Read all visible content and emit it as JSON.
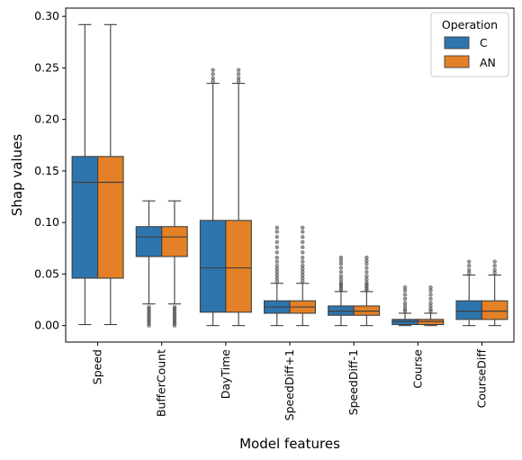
{
  "chart_data": {
    "type": "boxplot",
    "title": "",
    "xlabel": "Model features",
    "ylabel": "Shap values",
    "ylim": [
      -0.016,
      0.308
    ],
    "yticks": [
      0.0,
      0.05,
      0.1,
      0.15,
      0.2,
      0.25,
      0.3
    ],
    "ytick_labels": [
      "0.00",
      "0.05",
      "0.10",
      "0.15",
      "0.20",
      "0.25",
      "0.30"
    ],
    "categories": [
      "Speed",
      "BufferCount",
      "DayTime",
      "SpeedDiff+1",
      "SpeedDiff-1",
      "Course",
      "CourseDiff"
    ],
    "legend": {
      "title": "Operation",
      "position": "top-right"
    },
    "series": [
      {
        "name": "C",
        "color": "#2f75ad",
        "boxes": [
          {
            "whislo": 0.001,
            "q1": 0.046,
            "med": 0.139,
            "q3": 0.164,
            "whishi": 0.292,
            "fliers": []
          },
          {
            "whislo": 0.021,
            "q1": 0.067,
            "med": 0.086,
            "q3": 0.096,
            "whishi": 0.121,
            "fliers": [
              0.0,
              0.002,
              0.004,
              0.006,
              0.008,
              0.01,
              0.012,
              0.014,
              0.016,
              0.018
            ]
          },
          {
            "whislo": 0.0,
            "q1": 0.013,
            "med": 0.056,
            "q3": 0.102,
            "whishi": 0.235,
            "fliers": [
              0.237,
              0.24,
              0.244,
              0.248
            ]
          },
          {
            "whislo": 0.0,
            "q1": 0.012,
            "med": 0.018,
            "q3": 0.024,
            "whishi": 0.041,
            "fliers": [
              0.043,
              0.046,
              0.049,
              0.052,
              0.055,
              0.058,
              0.062,
              0.066,
              0.071,
              0.076,
              0.081,
              0.086,
              0.091,
              0.095
            ]
          },
          {
            "whislo": 0.0,
            "q1": 0.01,
            "med": 0.014,
            "q3": 0.019,
            "whishi": 0.033,
            "fliers": [
              0.034,
              0.036,
              0.038,
              0.04,
              0.042,
              0.045,
              0.048,
              0.052,
              0.056,
              0.06,
              0.063,
              0.066
            ]
          },
          {
            "whislo": 0.0,
            "q1": 0.001,
            "med": 0.004,
            "q3": 0.006,
            "whishi": 0.012,
            "fliers": [
              0.014,
              0.016,
              0.019,
              0.022,
              0.026,
              0.03,
              0.034,
              0.037
            ]
          },
          {
            "whislo": 0.0,
            "q1": 0.006,
            "med": 0.014,
            "q3": 0.024,
            "whishi": 0.049,
            "fliers": [
              0.051,
              0.054,
              0.058,
              0.062
            ]
          }
        ]
      },
      {
        "name": "AN",
        "color": "#e48026",
        "boxes": [
          {
            "whislo": 0.001,
            "q1": 0.046,
            "med": 0.139,
            "q3": 0.164,
            "whishi": 0.292,
            "fliers": []
          },
          {
            "whislo": 0.021,
            "q1": 0.067,
            "med": 0.086,
            "q3": 0.096,
            "whishi": 0.121,
            "fliers": [
              0.0,
              0.002,
              0.004,
              0.006,
              0.008,
              0.01,
              0.012,
              0.014,
              0.016,
              0.018
            ]
          },
          {
            "whislo": 0.0,
            "q1": 0.013,
            "med": 0.056,
            "q3": 0.102,
            "whishi": 0.235,
            "fliers": [
              0.237,
              0.24,
              0.244,
              0.248
            ]
          },
          {
            "whislo": 0.0,
            "q1": 0.012,
            "med": 0.018,
            "q3": 0.024,
            "whishi": 0.041,
            "fliers": [
              0.043,
              0.046,
              0.049,
              0.052,
              0.055,
              0.058,
              0.062,
              0.066,
              0.071,
              0.076,
              0.081,
              0.086,
              0.091,
              0.095
            ]
          },
          {
            "whislo": 0.0,
            "q1": 0.01,
            "med": 0.014,
            "q3": 0.019,
            "whishi": 0.033,
            "fliers": [
              0.034,
              0.036,
              0.038,
              0.04,
              0.042,
              0.045,
              0.048,
              0.052,
              0.056,
              0.06,
              0.063,
              0.066
            ]
          },
          {
            "whislo": 0.0,
            "q1": 0.001,
            "med": 0.004,
            "q3": 0.006,
            "whishi": 0.012,
            "fliers": [
              0.014,
              0.016,
              0.019,
              0.022,
              0.026,
              0.03,
              0.034,
              0.037
            ]
          },
          {
            "whislo": 0.0,
            "q1": 0.006,
            "med": 0.014,
            "q3": 0.024,
            "whishi": 0.049,
            "fliers": [
              0.051,
              0.054,
              0.058,
              0.062
            ]
          }
        ]
      }
    ]
  }
}
